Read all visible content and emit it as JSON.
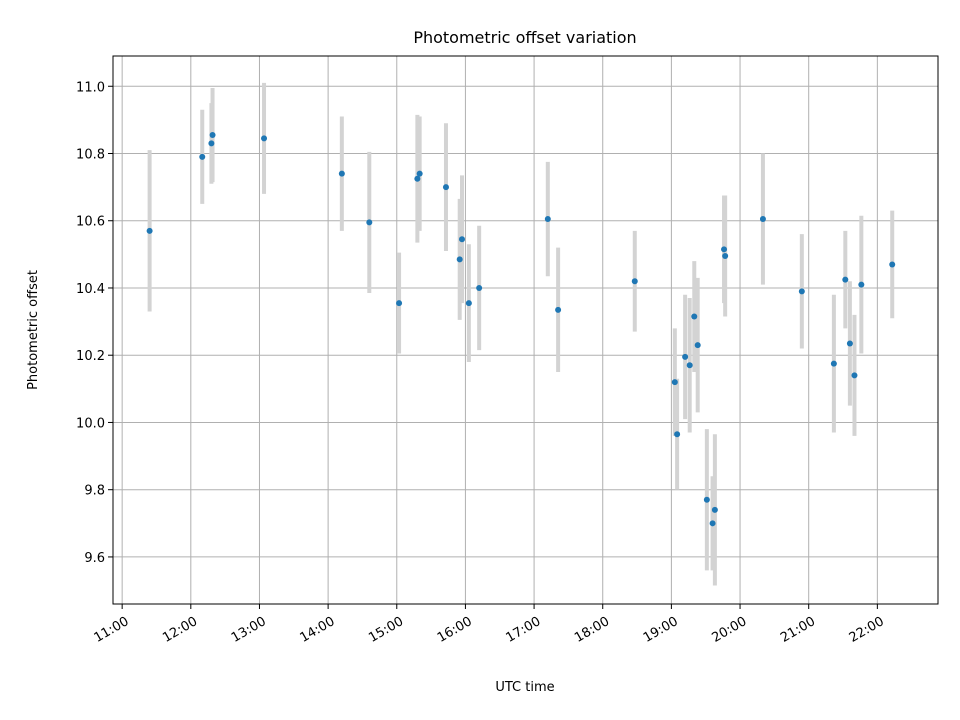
{
  "chart_data": {
    "type": "scatter",
    "title": "Photometric offset variation",
    "xlabel": "UTC time",
    "ylabel": "Photometric offset",
    "x_ticks": [
      "11:00",
      "12:00",
      "13:00",
      "14:00",
      "15:00",
      "16:00",
      "17:00",
      "18:00",
      "19:00",
      "20:00",
      "21:00",
      "22:00"
    ],
    "y_ticks": [
      "9.6",
      "9.8",
      "10.0",
      "10.2",
      "10.4",
      "10.6",
      "10.8",
      "11.0"
    ],
    "xlim": [
      "10:52",
      "22:53"
    ],
    "ylim": [
      9.46,
      11.09
    ],
    "grid": true,
    "series": [
      {
        "color": "#1f77b4",
        "error_color": "#d3d3d3",
        "points": [
          {
            "x": "11:24",
            "y": 10.57,
            "yerr": 0.24
          },
          {
            "x": "12:10",
            "y": 10.79,
            "yerr": 0.14
          },
          {
            "x": "12:18",
            "y": 10.83,
            "yerr": 0.12
          },
          {
            "x": "12:19",
            "y": 10.855,
            "yerr": 0.14
          },
          {
            "x": "13:04",
            "y": 10.845,
            "yerr": 0.165
          },
          {
            "x": "14:12",
            "y": 10.74,
            "yerr": 0.17
          },
          {
            "x": "14:36",
            "y": 10.595,
            "yerr": 0.21
          },
          {
            "x": "15:02",
            "y": 10.355,
            "yerr": 0.15
          },
          {
            "x": "15:18",
            "y": 10.725,
            "yerr": 0.19
          },
          {
            "x": "15:20",
            "y": 10.74,
            "yerr": 0.17
          },
          {
            "x": "15:43",
            "y": 10.7,
            "yerr": 0.19
          },
          {
            "x": "15:55",
            "y": 10.485,
            "yerr": 0.18
          },
          {
            "x": "15:57",
            "y": 10.545,
            "yerr": 0.19
          },
          {
            "x": "16:03",
            "y": 10.355,
            "yerr": 0.175
          },
          {
            "x": "16:12",
            "y": 10.4,
            "yerr": 0.185
          },
          {
            "x": "17:12",
            "y": 10.605,
            "yerr": 0.17
          },
          {
            "x": "17:21",
            "y": 10.335,
            "yerr": 0.185
          },
          {
            "x": "18:28",
            "y": 10.42,
            "yerr": 0.15
          },
          {
            "x": "19:03",
            "y": 10.12,
            "yerr": 0.16
          },
          {
            "x": "19:05",
            "y": 9.965,
            "yerr": 0.165
          },
          {
            "x": "19:12",
            "y": 10.195,
            "yerr": 0.185
          },
          {
            "x": "19:16",
            "y": 10.17,
            "yerr": 0.2
          },
          {
            "x": "19:20",
            "y": 10.315,
            "yerr": 0.165
          },
          {
            "x": "19:23",
            "y": 10.23,
            "yerr": 0.2
          },
          {
            "x": "19:31",
            "y": 9.77,
            "yerr": 0.21
          },
          {
            "x": "19:36",
            "y": 9.7,
            "yerr": 0.14
          },
          {
            "x": "19:38",
            "y": 9.74,
            "yerr": 0.225
          },
          {
            "x": "19:46",
            "y": 10.515,
            "yerr": 0.16
          },
          {
            "x": "19:47",
            "y": 10.495,
            "yerr": 0.18
          },
          {
            "x": "20:20",
            "y": 10.605,
            "yerr": 0.195
          },
          {
            "x": "20:54",
            "y": 10.39,
            "yerr": 0.17
          },
          {
            "x": "21:22",
            "y": 10.175,
            "yerr": 0.205
          },
          {
            "x": "21:32",
            "y": 10.425,
            "yerr": 0.145
          },
          {
            "x": "21:36",
            "y": 10.235,
            "yerr": 0.185
          },
          {
            "x": "21:40",
            "y": 10.14,
            "yerr": 0.18
          },
          {
            "x": "21:46",
            "y": 10.41,
            "yerr": 0.205
          },
          {
            "x": "22:13",
            "y": 10.47,
            "yerr": 0.16
          }
        ]
      }
    ]
  }
}
